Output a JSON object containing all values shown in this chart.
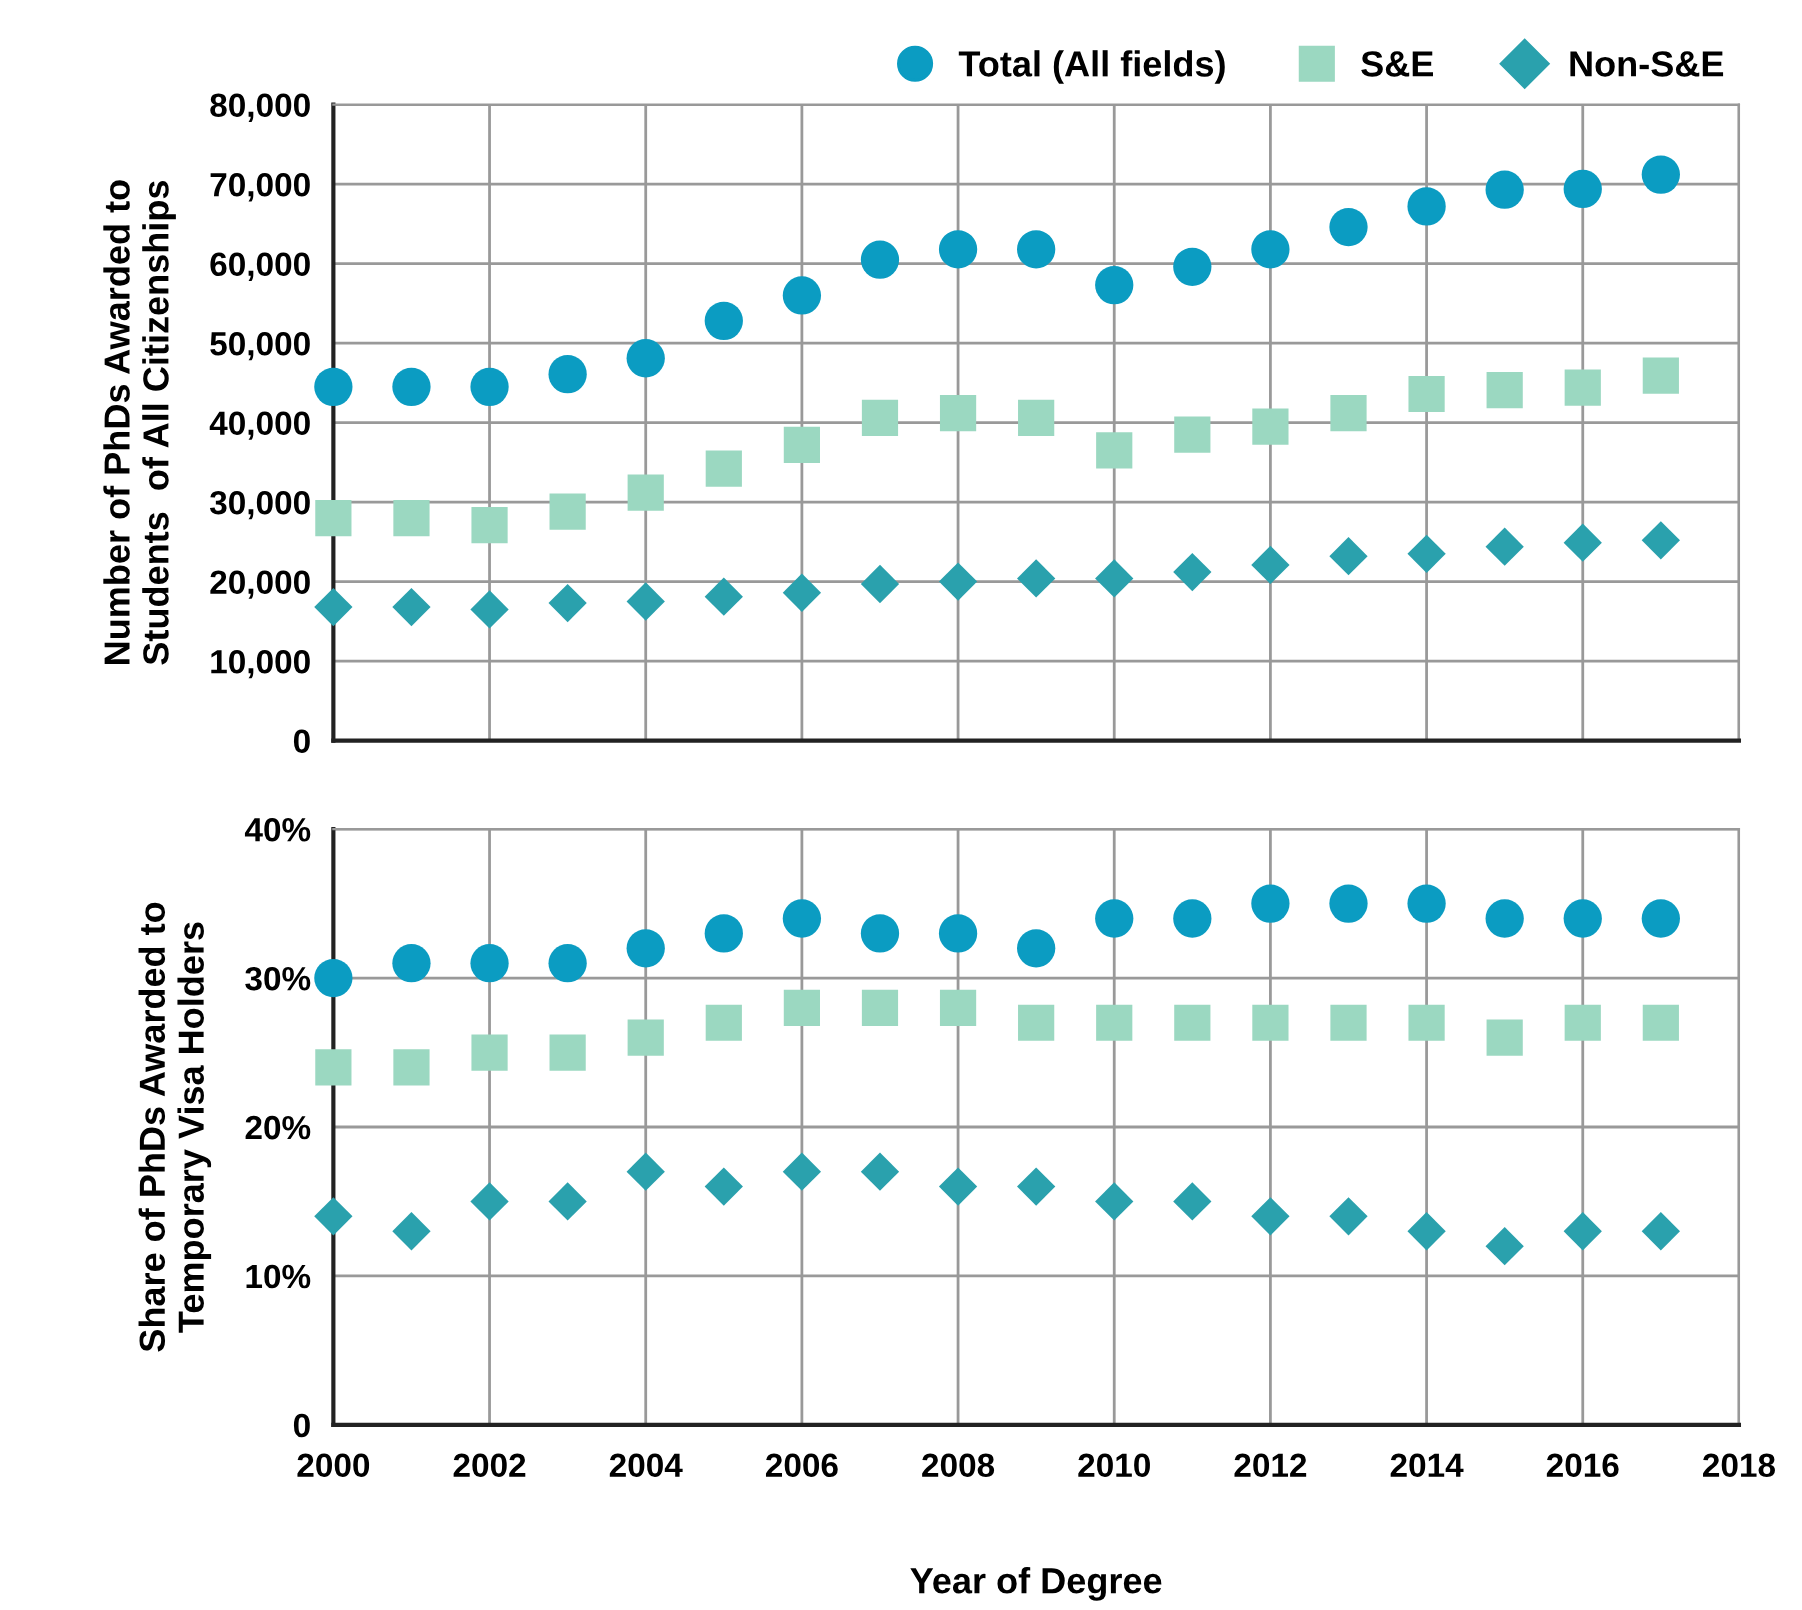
{
  "chart_data": [
    {
      "type": "scatter",
      "ylabel": "Number of PhDs Awarded to\nStudents  of All Citizenships",
      "x": [
        2000,
        2001,
        2002,
        2003,
        2004,
        2005,
        2006,
        2007,
        2008,
        2009,
        2010,
        2011,
        2012,
        2013,
        2014,
        2015,
        2016,
        2017
      ],
      "xlim": [
        2000,
        2018
      ],
      "xticks": [
        2000,
        2002,
        2004,
        2006,
        2008,
        2010,
        2012,
        2014,
        2016,
        2018
      ],
      "ylim": [
        0,
        80000
      ],
      "yticks": [
        {
          "value": 0,
          "label": "0"
        },
        {
          "value": 10000,
          "label": "10,000"
        },
        {
          "value": 20000,
          "label": "20,000"
        },
        {
          "value": 30000,
          "label": "30,000"
        },
        {
          "value": 40000,
          "label": "40,000"
        },
        {
          "value": 50000,
          "label": "50,000"
        },
        {
          "value": 60000,
          "label": "60,000"
        },
        {
          "value": 70000,
          "label": "70,000"
        },
        {
          "value": 80000,
          "label": "80,000"
        }
      ],
      "tick_labels": "y",
      "grid": true,
      "legend": "top right",
      "series": [
        {
          "name": "Total (All fields)",
          "color": "#0b9cc2",
          "marker": "circle",
          "values": [
            44500,
            44500,
            44500,
            46100,
            48100,
            52800,
            56000,
            60500,
            61800,
            61800,
            57300,
            59600,
            61800,
            64600,
            67200,
            69300,
            69400,
            71200
          ]
        },
        {
          "name": "S&E",
          "color": "#9bd8c1",
          "marker": "square",
          "values": [
            28000,
            28000,
            27100,
            28800,
            31200,
            34200,
            37200,
            40600,
            41200,
            40600,
            36500,
            38500,
            39500,
            41200,
            43600,
            44100,
            44400,
            45900
          ]
        },
        {
          "name": "Non-S&E",
          "color": "#2aa1ad",
          "marker": "diamond",
          "values": [
            16800,
            16800,
            16500,
            17300,
            17500,
            18100,
            18600,
            19700,
            20000,
            20400,
            20400,
            21200,
            22100,
            23200,
            23500,
            24400,
            24900,
            25200
          ]
        }
      ]
    },
    {
      "type": "scatter",
      "ylabel": "Share of PhDs Awarded to\nTemporary Visa Holders",
      "xlabel": "Year of Degree",
      "x": [
        2000,
        2001,
        2002,
        2003,
        2004,
        2005,
        2006,
        2007,
        2008,
        2009,
        2010,
        2011,
        2012,
        2013,
        2014,
        2015,
        2016,
        2017
      ],
      "xlim": [
        2000,
        2018
      ],
      "xticks": [
        2000,
        2002,
        2004,
        2006,
        2008,
        2010,
        2012,
        2014,
        2016,
        2018
      ],
      "ylim": [
        0,
        40
      ],
      "yticks": [
        {
          "value": 0,
          "label": "0"
        },
        {
          "value": 10,
          "label": "10%"
        },
        {
          "value": 20,
          "label": "20%"
        },
        {
          "value": 30,
          "label": "30%"
        },
        {
          "value": 40,
          "label": "40%"
        }
      ],
      "grid": true,
      "series": [
        {
          "color": "#0b9cc2",
          "marker": "circle",
          "values": [
            30,
            31,
            31,
            31,
            32,
            33,
            34,
            33,
            33,
            32,
            34,
            34,
            35,
            35,
            35,
            34,
            34,
            34
          ]
        },
        {
          "color": "#9bd8c1",
          "marker": "square",
          "values": [
            24,
            24,
            25,
            25,
            26,
            27,
            28,
            28,
            28,
            27,
            27,
            27,
            27,
            27,
            27,
            26,
            27,
            27
          ]
        },
        {
          "color": "#2aa1ad",
          "marker": "diamond",
          "values": [
            14,
            13,
            15,
            15,
            17,
            16,
            17,
            17,
            16,
            16,
            15,
            15,
            14,
            14,
            13,
            12,
            13,
            13
          ]
        }
      ]
    }
  ]
}
